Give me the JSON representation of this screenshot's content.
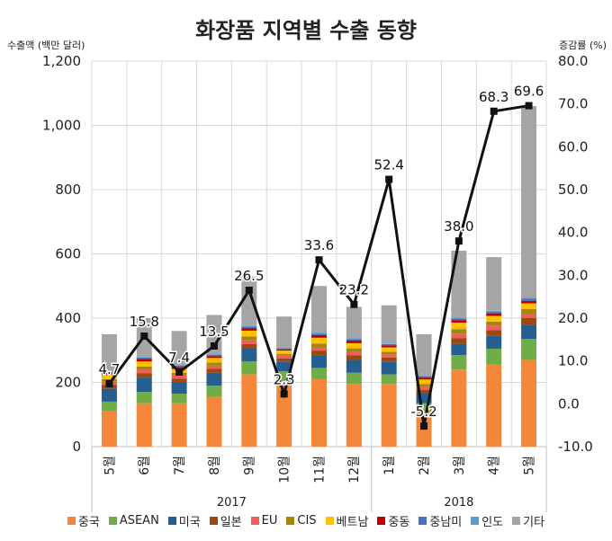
{
  "chart_data": {
    "type": "bar",
    "title": "화장품 지역별 수출 동향",
    "ylabel": "수출액 (백만 달러)",
    "y2label": "증감률 (%)",
    "ylim": [
      0,
      1200
    ],
    "y_ticks": [
      "0",
      "200",
      "400",
      "600",
      "800",
      "1,000",
      "1,200"
    ],
    "y2lim": [
      -10,
      80
    ],
    "y2_ticks": [
      "-10.0",
      "0.0",
      "10.0",
      "20.0",
      "30.0",
      "40.0",
      "50.0",
      "60.0",
      "70.0",
      "80.0"
    ],
    "categories": [
      "5월",
      "6월",
      "7월",
      "8월",
      "9월",
      "10월",
      "11월",
      "12월",
      "1월",
      "2월",
      "3월",
      "4월",
      "5월"
    ],
    "year_groups": [
      {
        "label": "2017",
        "start": 0,
        "end": 7
      },
      {
        "label": "2018",
        "start": 8,
        "end": 12
      }
    ],
    "stacked": true,
    "grid": true,
    "legend_position": "bottom",
    "series": [
      {
        "name": "중국",
        "color": "#F4873A",
        "values": [
          110,
          135,
          135,
          155,
          225,
          205,
          210,
          195,
          195,
          110,
          240,
          255,
          270
        ]
      },
      {
        "name": "ASEAN",
        "color": "#70AD47",
        "values": [
          30,
          35,
          30,
          35,
          40,
          30,
          35,
          35,
          30,
          25,
          45,
          50,
          65
        ]
      },
      {
        "name": "미국",
        "color": "#255E91",
        "values": [
          40,
          45,
          35,
          40,
          40,
          30,
          40,
          40,
          40,
          30,
          35,
          40,
          45
        ]
      },
      {
        "name": "일본",
        "color": "#9E480E",
        "values": [
          12,
          14,
          12,
          12,
          14,
          10,
          14,
          14,
          12,
          12,
          18,
          18,
          20
        ]
      },
      {
        "name": "EU",
        "color": "#F25C5C",
        "values": [
          10,
          10,
          10,
          10,
          12,
          8,
          10,
          10,
          10,
          10,
          14,
          14,
          14
        ]
      },
      {
        "name": "CIS",
        "color": "#A5860C",
        "values": [
          8,
          10,
          8,
          10,
          12,
          6,
          12,
          12,
          8,
          8,
          14,
          12,
          14
        ]
      },
      {
        "name": "베트남",
        "color": "#FFC000",
        "values": [
          12,
          16,
          12,
          14,
          18,
          10,
          18,
          16,
          14,
          14,
          20,
          18,
          18
        ]
      },
      {
        "name": "중동",
        "color": "#C00000",
        "values": [
          6,
          8,
          6,
          6,
          8,
          4,
          8,
          8,
          6,
          6,
          8,
          8,
          8
        ]
      },
      {
        "name": "중남미",
        "color": "#4472C4",
        "values": [
          4,
          4,
          4,
          4,
          5,
          3,
          5,
          5,
          4,
          4,
          5,
          5,
          6
        ]
      },
      {
        "name": "인도",
        "color": "#5B9BD5",
        "values": [
          2,
          2,
          2,
          2,
          3,
          2,
          3,
          3,
          2,
          2,
          3,
          3,
          3
        ]
      },
      {
        "name": "기타",
        "color": "#A5A5A5",
        "values": [
          116,
          121,
          106,
          122,
          153,
          97,
          145,
          97,
          119,
          129,
          208,
          167,
          597
        ]
      }
    ],
    "line": {
      "axis": "right",
      "color": "#111111",
      "values": [
        4.7,
        15.8,
        7.4,
        13.5,
        26.5,
        2.3,
        33.6,
        23.2,
        52.4,
        -5.2,
        38.0,
        68.3,
        69.6
      ],
      "labels": [
        "4.7",
        "15.8",
        "7.4",
        "13.5",
        "26.5",
        "2.3",
        "33.6",
        "23.2",
        "52.4",
        "-5.2",
        "38.0",
        "68.3",
        "69.6"
      ]
    }
  }
}
